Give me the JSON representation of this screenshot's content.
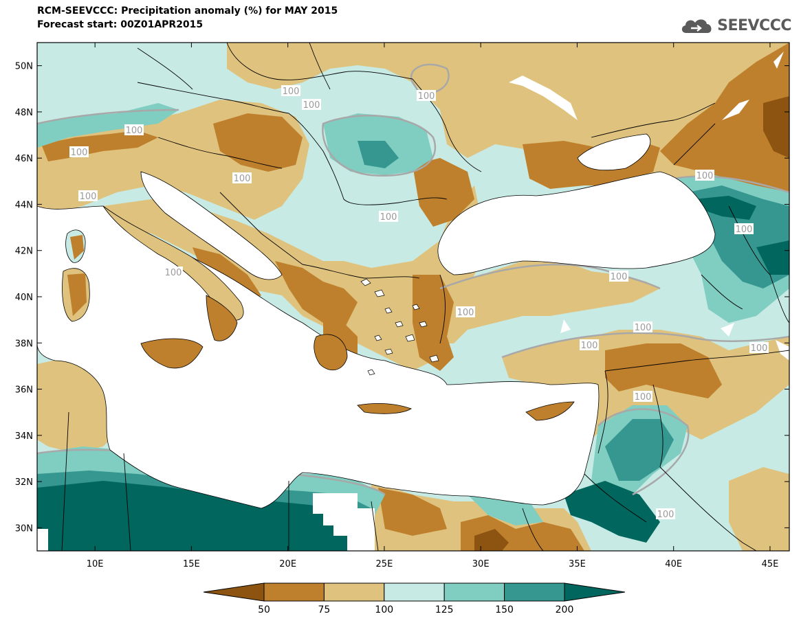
{
  "title": "RCM-SEEVCCC: Precipitation anomaly (%) for MAY 2015",
  "subtitle": "Forecast start: 00Z01APR2015",
  "logo": "SEEVCCC",
  "axes": {
    "lon_labels": [
      "10E",
      "15E",
      "20E",
      "25E",
      "30E",
      "35E",
      "40E",
      "45E"
    ],
    "lat_labels": [
      "50N",
      "48N",
      "46N",
      "44N",
      "42N",
      "40N",
      "38N",
      "36N",
      "34N",
      "32N",
      "30N"
    ]
  },
  "contour_labels": [
    "100",
    "100",
    "100",
    "100",
    "100",
    "100",
    "100",
    "100",
    "100",
    "100",
    "100",
    "100",
    "100",
    "100",
    "100",
    "100",
    "100",
    "100"
  ],
  "colorbar": {
    "ticks": [
      "50",
      "75",
      "100",
      "125",
      "150",
      "200"
    ],
    "colors": [
      "#8c5410",
      "#bf802d",
      "#dfc27d",
      "#c7eae5",
      "#80cdc1",
      "#35978f",
      "#01665e"
    ]
  },
  "colors": {
    "land_base": "#c7eae5",
    "sea": "#ffffff",
    "contour": "#a8a8a8",
    "border": "#000000"
  },
  "chart_data": {
    "type": "heatmap",
    "title": "RCM-SEEVCCC: Precipitation anomaly (%) for MAY 2015",
    "subtitle": "Forecast start: 00Z01APR2015",
    "xlabel": "",
    "ylabel": "",
    "xlim": [
      7,
      46
    ],
    "ylim": [
      29,
      51
    ],
    "x_ticks": [
      10,
      15,
      20,
      25,
      30,
      35,
      40,
      45
    ],
    "y_ticks": [
      30,
      32,
      34,
      36,
      38,
      40,
      42,
      44,
      46,
      48,
      50
    ],
    "levels": [
      50,
      75,
      100,
      125,
      150,
      200
    ],
    "colors": [
      "#8c5410",
      "#bf802d",
      "#dfc27d",
      "#c7eae5",
      "#80cdc1",
      "#35978f",
      "#01665e"
    ],
    "contour_lines": [
      100
    ]
  }
}
